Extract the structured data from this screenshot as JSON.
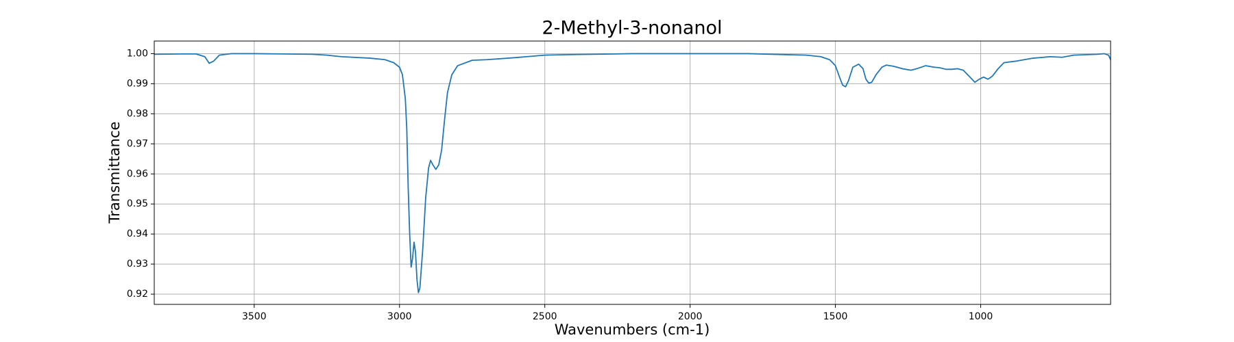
{
  "chart_data": {
    "type": "line",
    "title": "2-Methyl-3-nonanol",
    "xlabel": "Wavenumbers (cm-1)",
    "ylabel": "Transmittance",
    "grid": true,
    "xlim": [
      3844,
      553
    ],
    "ylim": [
      0.9166,
      1.0042
    ],
    "xticks": [
      3500,
      3000,
      2500,
      2000,
      1500,
      1000
    ],
    "yticks": [
      0.92,
      0.93,
      0.94,
      0.95,
      0.96,
      0.97,
      0.98,
      0.99,
      {
        "value": 1,
        "label": "1.00"
      }
    ],
    "x": [
      3844,
      3750,
      3700,
      3670,
      3655,
      3640,
      3620,
      3580,
      3500,
      3400,
      3300,
      3250,
      3200,
      3100,
      3050,
      3020,
      3000,
      2990,
      2980,
      2975,
      2970,
      2965,
      2960,
      2955,
      2950,
      2945,
      2940,
      2935,
      2930,
      2920,
      2910,
      2900,
      2893,
      2885,
      2875,
      2865,
      2855,
      2845,
      2835,
      2820,
      2800,
      2750,
      2700,
      2600,
      2500,
      2400,
      2200,
      2000,
      1800,
      1600,
      1550,
      1520,
      1500,
      1485,
      1475,
      1465,
      1455,
      1440,
      1420,
      1405,
      1395,
      1385,
      1375,
      1360,
      1340,
      1325,
      1300,
      1270,
      1240,
      1220,
      1190,
      1160,
      1140,
      1120,
      1100,
      1080,
      1060,
      1040,
      1020,
      1005,
      990,
      975,
      960,
      940,
      920,
      880,
      820,
      760,
      720,
      680,
      600,
      575,
      560,
      553
    ],
    "series": [
      {
        "name": "2-Methyl-3-nonanol",
        "color": "#1f77b4",
        "values": [
          0.9998,
          0.9999,
          0.9999,
          0.999,
          0.9968,
          0.9975,
          0.9995,
          1.0,
          1.0,
          0.9999,
          0.9998,
          0.9995,
          0.999,
          0.9985,
          0.998,
          0.997,
          0.9955,
          0.993,
          0.985,
          0.975,
          0.955,
          0.94,
          0.929,
          0.932,
          0.9373,
          0.934,
          0.925,
          0.9205,
          0.922,
          0.935,
          0.952,
          0.962,
          0.9645,
          0.963,
          0.9615,
          0.963,
          0.968,
          0.978,
          0.987,
          0.993,
          0.996,
          0.9978,
          0.998,
          0.9987,
          0.9995,
          0.9997,
          1.0,
          1.0,
          1.0,
          0.9995,
          0.999,
          0.998,
          0.996,
          0.992,
          0.9895,
          0.989,
          0.991,
          0.9955,
          0.9965,
          0.995,
          0.9915,
          0.9902,
          0.9905,
          0.993,
          0.9955,
          0.9962,
          0.9958,
          0.995,
          0.9945,
          0.995,
          0.996,
          0.9955,
          0.9953,
          0.9948,
          0.9948,
          0.995,
          0.9945,
          0.9925,
          0.9905,
          0.9915,
          0.9922,
          0.9915,
          0.9925,
          0.995,
          0.997,
          0.9975,
          0.9985,
          0.999,
          0.9988,
          0.9995,
          0.9998,
          1.0,
          0.9995,
          0.998
        ]
      }
    ]
  }
}
